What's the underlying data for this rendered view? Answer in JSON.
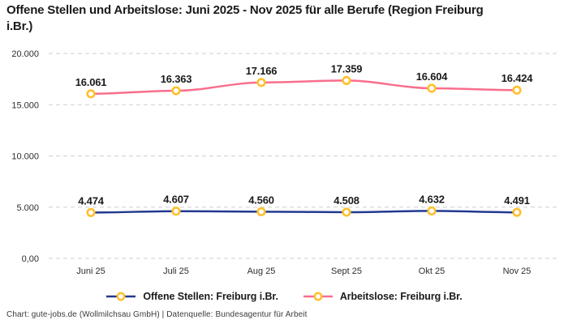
{
  "chart_data": {
    "type": "line",
    "title": "Offene Stellen und Arbeitslose: Juni 2025 - Nov 2025 für alle Berufe (Region Freiburg i.Br.)",
    "categories": [
      "Juni 25",
      "Juli 25",
      "Aug 25",
      "Sept 25",
      "Okt 25",
      "Nov 25"
    ],
    "series": [
      {
        "name": "Offene Stellen: Freiburg i.Br.",
        "color": "#22398f",
        "values": [
          4474,
          4607,
          4560,
          4508,
          4632,
          4491
        ],
        "labels": [
          "4.474",
          "4.607",
          "4.560",
          "4.508",
          "4.632",
          "4.491"
        ]
      },
      {
        "name": "Arbeitslose: Freiburg i.Br.",
        "color": "#f96e8c",
        "values": [
          16061,
          16363,
          17166,
          17359,
          16604,
          16424
        ],
        "labels": [
          "16.061",
          "16.363",
          "17.166",
          "17.359",
          "16.604",
          "16.424"
        ]
      }
    ],
    "marker": {
      "stroke": "#ffc02e",
      "fill": "#ffffff"
    },
    "ylim": [
      0,
      20000
    ],
    "yticks": [
      {
        "value": 0,
        "label": "0,00"
      },
      {
        "value": 5000,
        "label": "5.000"
      },
      {
        "value": 10000,
        "label": "10.000"
      },
      {
        "value": 15000,
        "label": "15.000"
      },
      {
        "value": 20000,
        "label": "20.000"
      }
    ],
    "grid": "dashed",
    "grid_color": "#cfcfcf",
    "legend_position": "bottom"
  },
  "footer": {
    "credit": "Chart: gute-jobs.de (Wollmilchsau GmbH) | Datenquelle: Bundesagentur für Arbeit"
  }
}
